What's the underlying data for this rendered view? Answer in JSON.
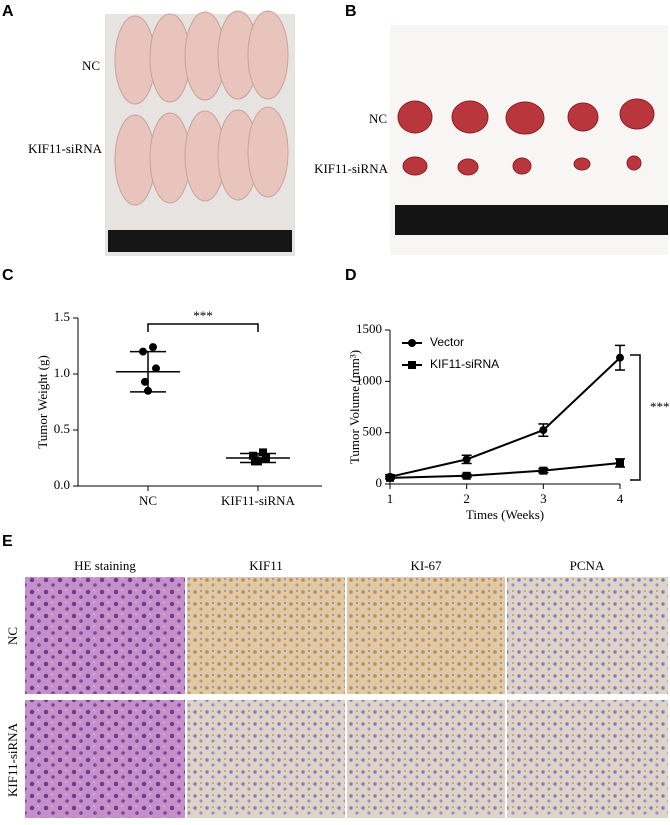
{
  "panels": {
    "a": {
      "label": "A",
      "rows": [
        "NC",
        "KIF11-siRNA"
      ]
    },
    "b": {
      "label": "B",
      "rows": [
        "NC",
        "KIF11-siRNA"
      ]
    },
    "e": {
      "label": "E",
      "columns": [
        "HE staining",
        "KIF11",
        "KI-67",
        "PCNA"
      ],
      "rows": [
        "NC",
        "KIF11-siRNA"
      ]
    }
  },
  "chart_data": [
    {
      "type": "dotplot",
      "label": "C",
      "ylabel": "Tumor Weight (g)",
      "categories": [
        "NC",
        "KIF11-siRNA"
      ],
      "points": [
        [
          1.24,
          1.2,
          1.05,
          0.93,
          0.85
        ],
        [
          0.3,
          0.27,
          0.25,
          0.22,
          0.22
        ]
      ],
      "markers": [
        "circle",
        "square"
      ],
      "means": [
        1.02,
        0.25
      ],
      "sd": [
        0.18,
        0.04
      ],
      "ylim": [
        0,
        1.5
      ],
      "yticks": [
        {
          "value": 0,
          "label": "0.0"
        },
        {
          "value": 0.5,
          "label": "0.5"
        },
        {
          "value": 1,
          "label": "1.0"
        },
        {
          "value": 1.5,
          "label": "1.5"
        }
      ],
      "annotation": "***",
      "color": "#000000"
    },
    {
      "type": "line",
      "label": "D",
      "ylabel": "Tumor Volume (mm³)",
      "xlabel": "Times (Weeks)",
      "x": [
        1,
        2,
        3,
        4
      ],
      "xlim": [
        1,
        4
      ],
      "xticks": [
        1,
        2,
        3,
        4
      ],
      "ylim": [
        0,
        1500
      ],
      "yticks": [
        0,
        500,
        1000,
        1500
      ],
      "series": [
        {
          "name": "Vector",
          "color": "#000000",
          "marker": "circle",
          "values": [
            70,
            240,
            525,
            1230
          ],
          "errors": [
            20,
            40,
            60,
            120
          ]
        },
        {
          "name": "KIF11-siRNA",
          "color": "#000000",
          "marker": "square",
          "values": [
            60,
            80,
            130,
            205
          ],
          "errors": [
            10,
            15,
            20,
            40
          ]
        }
      ],
      "annotation": "***",
      "legend": "upper left"
    }
  ]
}
